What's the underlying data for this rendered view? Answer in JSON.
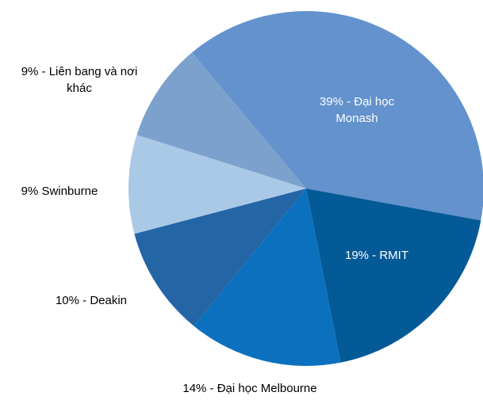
{
  "chart_data": {
    "type": "pie",
    "values": [
      39,
      19,
      14,
      10,
      9,
      9
    ],
    "value_labels": [
      "39% - Đại học Monash",
      "19% - RMIT",
      "14% - Đại học Melbourne",
      "10% - Deakin",
      "9% Swinburne",
      "9% - Liên bang và nơi khác"
    ],
    "colors": [
      "#6392cd",
      "#045a96",
      "#0b70be",
      "#2465a6",
      "#a9c9e7",
      "#7ca1cd"
    ]
  }
}
